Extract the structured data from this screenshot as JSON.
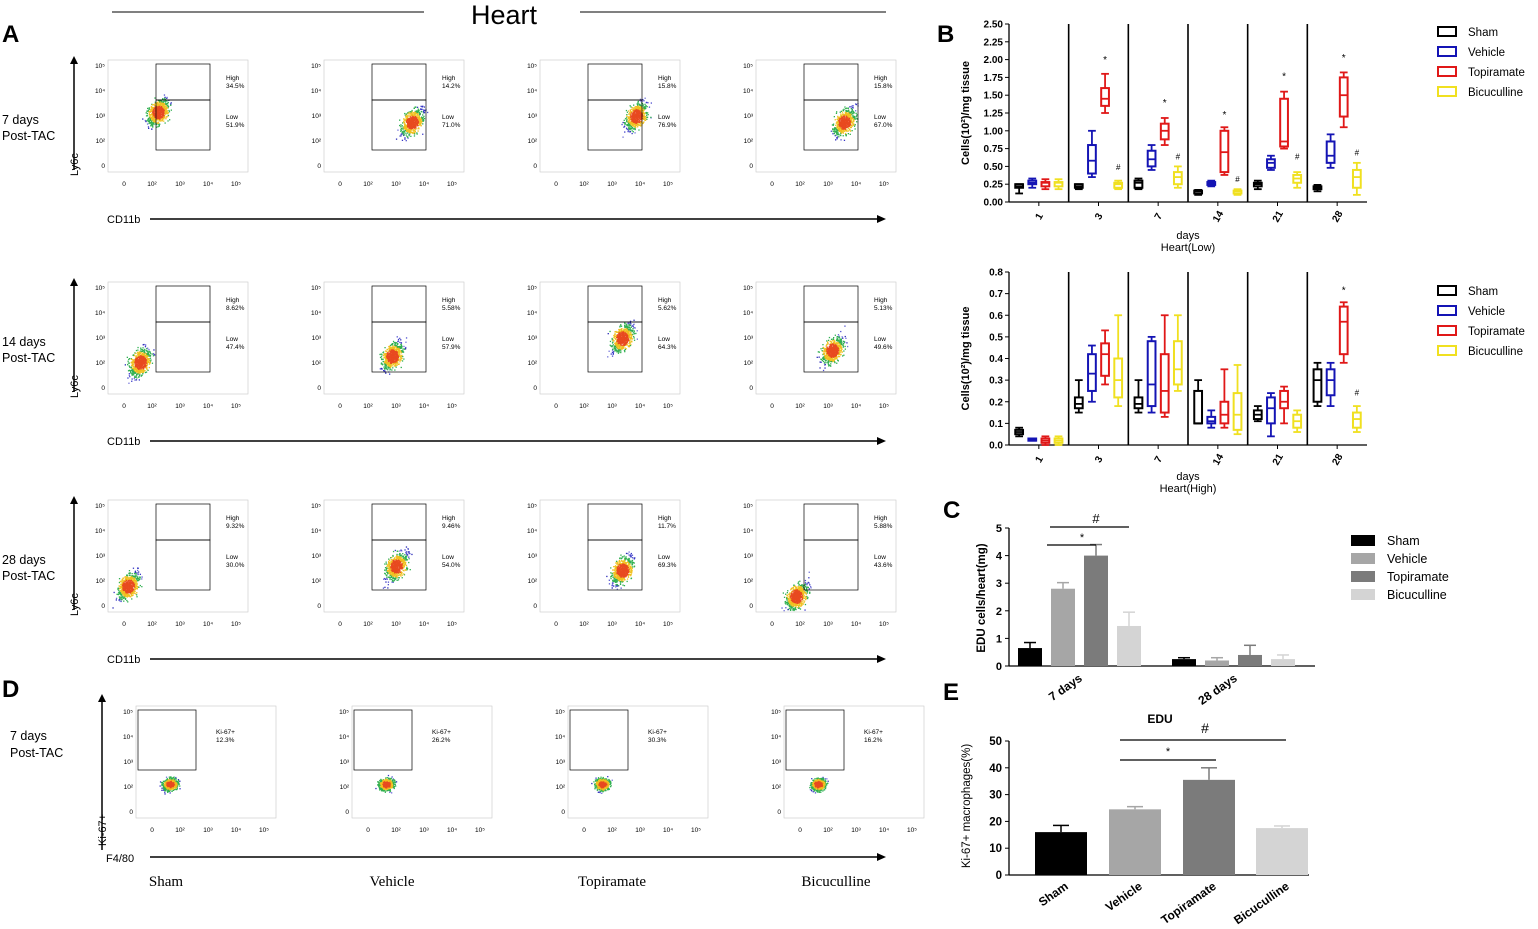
{
  "header": {
    "title": "Heart"
  },
  "panel_letters": [
    "A",
    "B",
    "C",
    "D",
    "E"
  ],
  "flow_rows": [
    {
      "day_label": "7 days",
      "sub_label": "Post-TAC",
      "y_label": "Ly6c",
      "x_label": "CD11b",
      "plots": [
        {
          "high_label": "High",
          "high_pct": "34.5%",
          "low_label": "Low",
          "low_pct": "51.9%"
        },
        {
          "high_label": "High",
          "high_pct": "14.2%",
          "low_label": "Low",
          "low_pct": "71.0%"
        },
        {
          "high_label": "High",
          "high_pct": "15.8%",
          "low_label": "Low",
          "low_pct": "76.9%"
        },
        {
          "high_label": "High",
          "high_pct": "15.8%",
          "low_label": "Low",
          "low_pct": "67.0%"
        }
      ]
    },
    {
      "day_label": "14 days",
      "sub_label": "Post-TAC",
      "y_label": "Ly6c",
      "x_label": "CD11b",
      "plots": [
        {
          "high_label": "High",
          "high_pct": "8.62%",
          "low_label": "Low",
          "low_pct": "47.4%"
        },
        {
          "high_label": "High",
          "high_pct": "5.58%",
          "low_label": "Low",
          "low_pct": "57.9%"
        },
        {
          "high_label": "High",
          "high_pct": "5.62%",
          "low_label": "Low",
          "low_pct": "64.3%"
        },
        {
          "high_label": "High",
          "high_pct": "5.13%",
          "low_label": "Low",
          "low_pct": "49.6%"
        }
      ]
    },
    {
      "day_label": "28 days",
      "sub_label": "Post-TAC",
      "y_label": "Ly6c",
      "x_label": "CD11b",
      "plots": [
        {
          "high_label": "High",
          "high_pct": "9.32%",
          "low_label": "Low",
          "low_pct": "30.0%"
        },
        {
          "high_label": "High",
          "high_pct": "9.46%",
          "low_label": "Low",
          "low_pct": "54.0%"
        },
        {
          "high_label": "High",
          "high_pct": "11.7%",
          "low_label": "Low",
          "low_pct": "69.3%"
        },
        {
          "high_label": "High",
          "high_pct": "5.88%",
          "low_label": "Low",
          "low_pct": "43.6%"
        }
      ]
    }
  ],
  "ki_row": {
    "day_label": "7 days",
    "sub_label": "Post-TAC",
    "y_label": "Ki-67+",
    "x_label": "F4/80",
    "plots": [
      {
        "gate_label": "Ki-67+",
        "pct": "12.3%"
      },
      {
        "gate_label": "Ki-67+",
        "pct": "26.2%"
      },
      {
        "gate_label": "Ki-67+",
        "pct": "30.3%"
      },
      {
        "gate_label": "Ki-67+",
        "pct": "16.2%"
      }
    ],
    "group_labels": [
      "Sham",
      "Vehicle",
      "Topiramate",
      "Bicuculline"
    ]
  },
  "flow_tick_labels": {
    "x": [
      "0",
      "10²",
      "10³",
      "10⁴",
      "10⁵"
    ],
    "y": [
      "10⁵",
      "10⁴",
      "10³",
      "10²",
      "0"
    ]
  },
  "colors": {
    "sham": "#000000",
    "vehicle": "#1414b4",
    "topiramate": "#e01818",
    "bicuculline": "#f0e020"
  },
  "chart_data": [
    {
      "id": "B-low",
      "type": "boxplot",
      "ylabel": "Cells(10²)/mg tissue",
      "xlabel": "days",
      "subtitle": "Heart(Low)",
      "ylim": [
        0,
        2.5
      ],
      "yticks": [
        "0.00",
        "0.25",
        "0.50",
        "0.75",
        "1.00",
        "1.25",
        "1.50",
        "1.75",
        "2.00",
        "2.25",
        "2.50"
      ],
      "categories": [
        "1",
        "3",
        "7",
        "14",
        "21",
        "28"
      ],
      "legend": [
        "Sham",
        "Vehicle",
        "Topiramate",
        "Bicuculline"
      ],
      "annotations": [
        "*",
        "#",
        "*",
        "#",
        "*",
        "#",
        "*",
        "#",
        "*",
        "#"
      ],
      "series": [
        {
          "name": "Sham",
          "boxes": [
            [
              0.12,
              0.2,
              0.22,
              0.25,
              0.25
            ],
            [
              0.18,
              0.2,
              0.22,
              0.25,
              0.25
            ],
            [
              0.18,
              0.2,
              0.27,
              0.3,
              0.33
            ],
            [
              0.1,
              0.12,
              0.15,
              0.16,
              0.17
            ],
            [
              0.18,
              0.22,
              0.25,
              0.27,
              0.3
            ],
            [
              0.15,
              0.18,
              0.2,
              0.22,
              0.24
            ]
          ]
        },
        {
          "name": "Vehicle",
          "boxes": [
            [
              0.2,
              0.25,
              0.27,
              0.3,
              0.33
            ],
            [
              0.35,
              0.4,
              0.58,
              0.8,
              1.0
            ],
            [
              0.45,
              0.5,
              0.6,
              0.72,
              0.8
            ],
            [
              0.22,
              0.24,
              0.26,
              0.28,
              0.3
            ],
            [
              0.45,
              0.48,
              0.55,
              0.6,
              0.65
            ],
            [
              0.48,
              0.55,
              0.65,
              0.85,
              0.95
            ]
          ]
        },
        {
          "name": "Topiramate",
          "boxes": [
            [
              0.18,
              0.22,
              0.27,
              0.28,
              0.32
            ],
            [
              1.25,
              1.35,
              1.45,
              1.6,
              1.8
            ],
            [
              0.8,
              0.88,
              1.0,
              1.1,
              1.18
            ],
            [
              0.38,
              0.42,
              0.7,
              1.0,
              1.05
            ],
            [
              0.75,
              0.78,
              0.85,
              1.45,
              1.55
            ],
            [
              1.05,
              1.2,
              1.5,
              1.75,
              1.82
            ]
          ]
        },
        {
          "name": "Bicuculline",
          "boxes": [
            [
              0.18,
              0.22,
              0.27,
              0.28,
              0.32
            ],
            [
              0.18,
              0.2,
              0.25,
              0.27,
              0.3
            ],
            [
              0.2,
              0.25,
              0.35,
              0.42,
              0.5
            ],
            [
              0.1,
              0.12,
              0.15,
              0.16,
              0.18
            ],
            [
              0.2,
              0.27,
              0.33,
              0.38,
              0.42
            ],
            [
              0.1,
              0.2,
              0.35,
              0.45,
              0.55
            ]
          ]
        }
      ]
    },
    {
      "id": "B-high",
      "type": "boxplot",
      "ylabel": "Cells(10²)/mg tissue",
      "xlabel": "days",
      "subtitle": "Heart(High)",
      "ylim": [
        0,
        0.8
      ],
      "yticks": [
        "0.0",
        "0.1",
        "0.2",
        "0.3",
        "0.4",
        "0.5",
        "0.6",
        "0.7",
        "0.8"
      ],
      "categories": [
        "1",
        "3",
        "7",
        "14",
        "21",
        "28"
      ],
      "legend": [
        "Sham",
        "Vehicle",
        "Topiramate",
        "Bicuculline"
      ],
      "annotations": [
        "*",
        "#"
      ],
      "series": [
        {
          "name": "Sham",
          "boxes": [
            [
              0.04,
              0.05,
              0.06,
              0.07,
              0.08
            ],
            [
              0.15,
              0.17,
              0.19,
              0.22,
              0.3
            ],
            [
              0.15,
              0.17,
              0.19,
              0.22,
              0.3
            ],
            [
              0.1,
              0.1,
              0.1,
              0.25,
              0.3
            ],
            [
              0.11,
              0.12,
              0.14,
              0.16,
              0.18
            ],
            [
              0.18,
              0.2,
              0.3,
              0.35,
              0.38
            ]
          ]
        },
        {
          "name": "Vehicle",
          "boxes": [
            [
              0.02,
              0.02,
              0.025,
              0.03,
              0.03
            ],
            [
              0.2,
              0.25,
              0.33,
              0.42,
              0.46
            ],
            [
              0.15,
              0.18,
              0.28,
              0.48,
              0.5
            ],
            [
              0.08,
              0.1,
              0.11,
              0.13,
              0.16
            ],
            [
              0.04,
              0.1,
              0.17,
              0.22,
              0.24
            ],
            [
              0.18,
              0.23,
              0.3,
              0.35,
              0.38
            ]
          ]
        },
        {
          "name": "Topiramate",
          "boxes": [
            [
              0.0,
              0.01,
              0.02,
              0.03,
              0.04
            ],
            [
              0.28,
              0.32,
              0.42,
              0.47,
              0.53
            ],
            [
              0.13,
              0.15,
              0.25,
              0.42,
              0.6
            ],
            [
              0.08,
              0.1,
              0.14,
              0.2,
              0.35
            ],
            [
              0.1,
              0.17,
              0.2,
              0.25,
              0.27
            ],
            [
              0.38,
              0.42,
              0.57,
              0.64,
              0.66
            ]
          ]
        },
        {
          "name": "Bicuculline",
          "boxes": [
            [
              0.0,
              0.01,
              0.02,
              0.03,
              0.04
            ],
            [
              0.18,
              0.22,
              0.3,
              0.4,
              0.6
            ],
            [
              0.25,
              0.28,
              0.35,
              0.48,
              0.6
            ],
            [
              0.05,
              0.07,
              0.14,
              0.24,
              0.37
            ],
            [
              0.06,
              0.08,
              0.11,
              0.14,
              0.16
            ],
            [
              0.06,
              0.08,
              0.12,
              0.15,
              0.18
            ]
          ]
        }
      ]
    },
    {
      "id": "C",
      "type": "bar",
      "ylabel": "EDU cells/heart(mg)",
      "ylim": [
        0,
        5
      ],
      "yticks": [
        "0",
        "1",
        "2",
        "3",
        "4",
        "5"
      ],
      "categories": [
        "7 days",
        "28 days"
      ],
      "legend": [
        "Sham",
        "Vehicle",
        "Topiramate",
        "Bicuculline"
      ],
      "colors": [
        "#000000",
        "#a6a6a6",
        "#7b7b7b",
        "#d4d4d4"
      ],
      "annotations": [
        "#",
        "*"
      ],
      "series": [
        {
          "name": "Sham",
          "values": [
            0.65,
            0.25
          ],
          "errors": [
            0.2,
            0.05
          ]
        },
        {
          "name": "Vehicle",
          "values": [
            2.8,
            0.2
          ],
          "errors": [
            0.22,
            0.1
          ]
        },
        {
          "name": "Topiramate",
          "values": [
            4.0,
            0.4
          ],
          "errors": [
            0.4,
            0.35
          ]
        },
        {
          "name": "Bicuculline",
          "values": [
            1.45,
            0.25
          ],
          "errors": [
            0.5,
            0.15
          ]
        }
      ]
    },
    {
      "id": "E",
      "type": "bar",
      "title": "EDU",
      "ylabel": "Ki-67+ macrophages(%)",
      "ylim": [
        0,
        50
      ],
      "yticks": [
        "0",
        "10",
        "20",
        "30",
        "40",
        "50"
      ],
      "categories": [
        "Sham",
        "Vehicle",
        "Topiramate",
        "Bicuculline"
      ],
      "colors": [
        "#000000",
        "#a6a6a6",
        "#7b7b7b",
        "#d4d4d4"
      ],
      "annotations": [
        "#",
        "*"
      ],
      "values": [
        16,
        24.5,
        35.5,
        17.5
      ],
      "errors": [
        2.5,
        1,
        4.5,
        0.8
      ]
    }
  ]
}
